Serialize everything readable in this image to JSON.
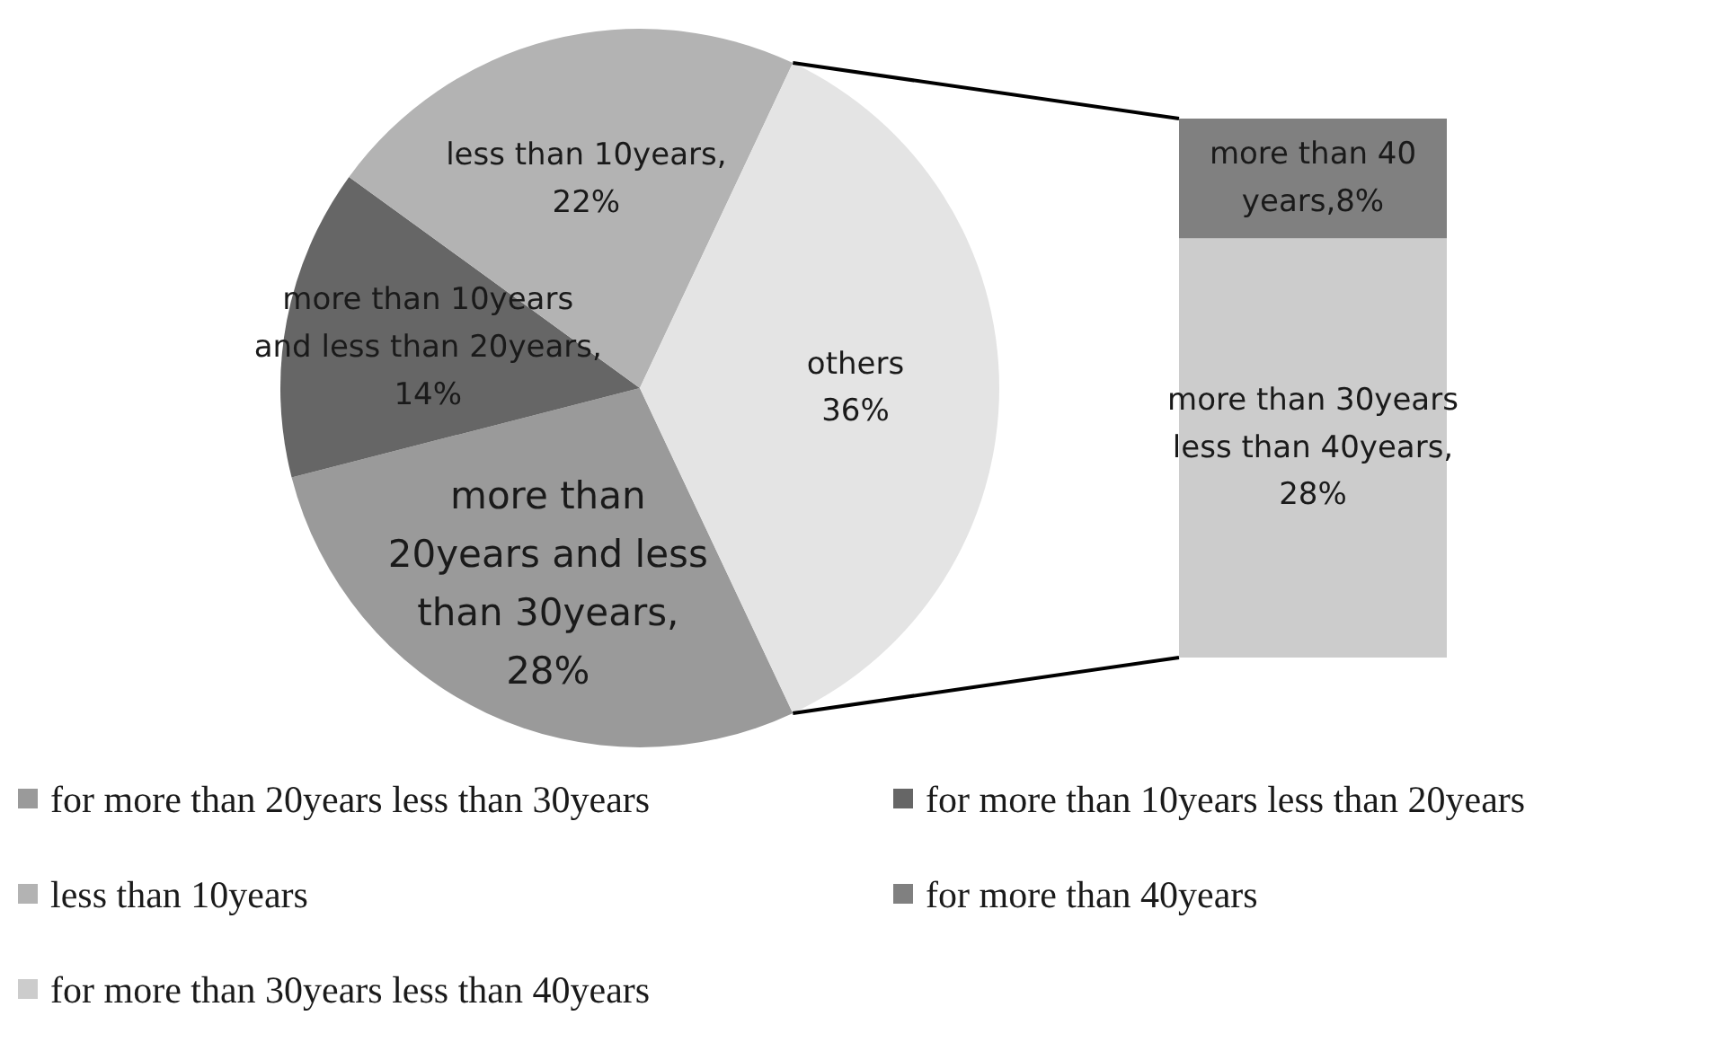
{
  "chart_data": [
    {
      "type": "pie",
      "categories": [
        "for more than 20years less than 30years",
        "for more than 10years less than 20years",
        "less than 10years",
        null
      ],
      "values": [
        28,
        14,
        22,
        36
      ],
      "colors": [
        "#9a9a9a",
        "#666666",
        "#b3b3b3",
        "#e4e4e4"
      ],
      "value_labels": [
        "more than\n20years and less\nthan 30years,\n28%",
        "more than 10years\nand less than 20years,\n14%",
        "less than 10years,\n22%",
        "others\n36%"
      ],
      "legend": "bottom"
    },
    {
      "type": "bar",
      "stacked": true,
      "categories": [
        null
      ],
      "legend": "bottom",
      "series": [
        {
          "name": "for more than 30years less than 40years",
          "color": "#cccccc",
          "values": [
            28
          ],
          "value_labels": [
            "more than 30years\nless than 40years,\n28%"
          ]
        },
        {
          "name": "for more than 40years",
          "color": "#808080",
          "values": [
            8
          ],
          "value_labels": [
            "more than 40\nyears,8%"
          ]
        }
      ]
    }
  ]
}
